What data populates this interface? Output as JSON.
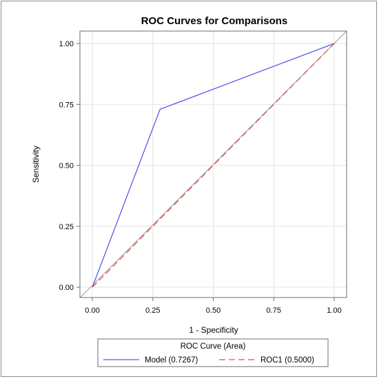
{
  "chart_data": {
    "type": "line",
    "title": "ROC Curves for Comparisons",
    "xlabel": "1 - Specificity",
    "ylabel": "Sensitivity",
    "xlim": [
      0,
      1
    ],
    "ylim": [
      0,
      1
    ],
    "xticks": [
      "0.00",
      "0.25",
      "0.50",
      "0.75",
      "1.00"
    ],
    "yticks": [
      "0.00",
      "0.25",
      "0.50",
      "0.75",
      "1.00"
    ],
    "grid": true,
    "legend_title": "ROC Curve (Area)",
    "legend_position": "bottom",
    "series": [
      {
        "name": "Model",
        "area_label": "(0.7267)",
        "color": "#5a5ae6",
        "style": "solid",
        "x": [
          0.0,
          0.28,
          1.0
        ],
        "y": [
          0.0,
          0.73,
          1.0
        ]
      },
      {
        "name": "ROC1",
        "area_label": "(0.5000)",
        "color": "#d9534f",
        "style": "dashed",
        "x": [
          0.0,
          1.0
        ],
        "y": [
          0.0,
          1.0
        ]
      }
    ],
    "reference_line": {
      "color": "#9a9a9a",
      "x": [
        -0.05,
        1.05
      ],
      "y": [
        -0.05,
        1.05
      ]
    }
  }
}
